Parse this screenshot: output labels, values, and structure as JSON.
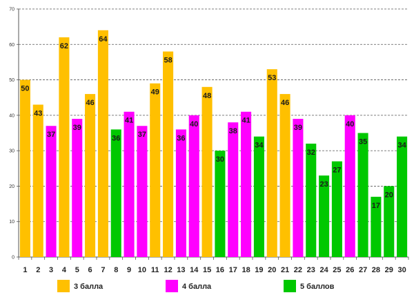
{
  "chart_data": {
    "type": "bar",
    "categories": [
      "1",
      "2",
      "3",
      "4",
      "5",
      "6",
      "7",
      "8",
      "9",
      "10",
      "11",
      "12",
      "13",
      "14",
      "15",
      "16",
      "17",
      "18",
      "19",
      "20",
      "21",
      "22",
      "23",
      "24",
      "25",
      "26",
      "27",
      "28",
      "29",
      "30"
    ],
    "values": [
      50,
      43,
      37,
      62,
      39,
      46,
      64,
      36,
      41,
      37,
      49,
      58,
      36,
      40,
      48,
      30,
      38,
      41,
      34,
      53,
      46,
      39,
      32,
      23,
      27,
      40,
      35,
      17,
      20,
      34
    ],
    "groups": [
      0,
      0,
      1,
      0,
      1,
      0,
      0,
      2,
      1,
      1,
      0,
      0,
      1,
      1,
      0,
      2,
      1,
      1,
      2,
      0,
      0,
      1,
      2,
      2,
      2,
      1,
      2,
      2,
      2,
      2
    ],
    "legend": [
      {
        "name": "3 балла",
        "color": "#FFC000"
      },
      {
        "name": "4 балла",
        "color": "#FF00FF"
      },
      {
        "name": "5 баллов",
        "color": "#00C800"
      }
    ],
    "ylim": [
      0,
      70
    ],
    "yticks": [
      0,
      10,
      20,
      30,
      40,
      50,
      60,
      70
    ],
    "grid": true,
    "legend_placement": "bottom",
    "xlabel": "",
    "ylabel": "",
    "title": ""
  }
}
